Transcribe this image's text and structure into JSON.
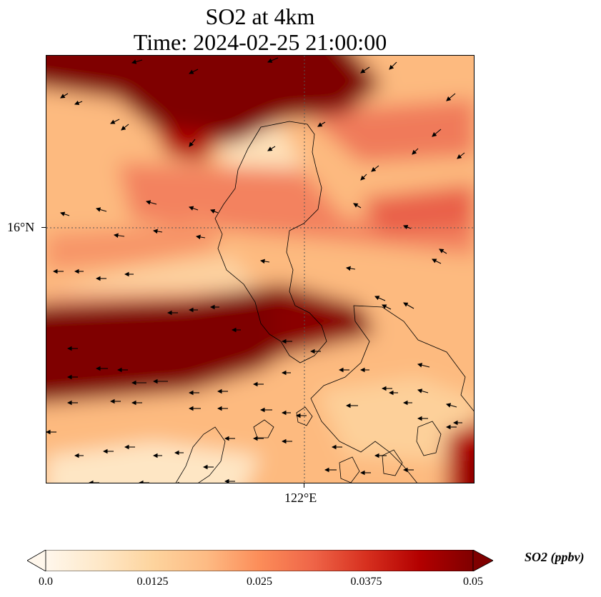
{
  "title": {
    "line1": "SO2 at 4km",
    "line2": "Time: 2024-02-25 21:00:00"
  },
  "axes": {
    "lat_tick_label": "16°N",
    "lon_tick_label": "122°E",
    "gridlines": true
  },
  "colorbar": {
    "label": "SO2 (ppbv)",
    "colormap": "OrRd",
    "min": 0.0,
    "max": 0.05,
    "extend": "both",
    "ticks": [
      "0.0",
      "0.0125",
      "0.025",
      "0.0375",
      "0.05"
    ],
    "colors": [
      "#fff7ec",
      "#fee8c8",
      "#fdd49e",
      "#fdbb84",
      "#fc8d59",
      "#ef6548",
      "#d7301f",
      "#b30000",
      "#7f0000"
    ]
  },
  "overlay": {
    "field": "SO2 concentration",
    "vectors": "wind arrows",
    "coastlines": true
  }
}
